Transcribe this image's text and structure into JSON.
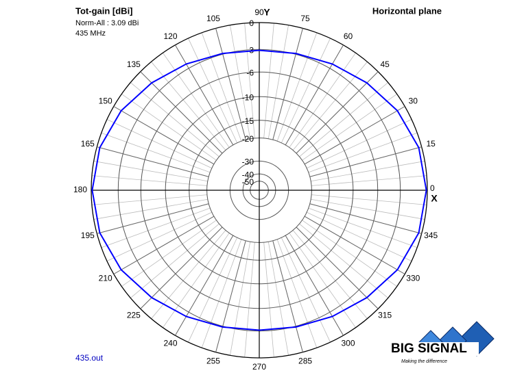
{
  "chart_data": {
    "type": "polar",
    "title": "Tot-gain [dBi]",
    "annotations": [
      "Norm-All : 3.09 dBi",
      "435 MHz"
    ],
    "plane": "Horizontal plane",
    "file": "435.out",
    "x_axis_label": "X",
    "y_axis_label": "Y",
    "radial_scale": "arrl",
    "rlim": [
      -50,
      0
    ],
    "rticks": [
      0,
      -3,
      -6,
      -10,
      -15,
      -20,
      -30,
      -40,
      -50
    ],
    "xticks": [
      0,
      15,
      30,
      45,
      60,
      75,
      90,
      105,
      120,
      135,
      150,
      165,
      180,
      195,
      210,
      225,
      240,
      255,
      270,
      285,
      300,
      315,
      330,
      345
    ],
    "x": [
      0,
      15,
      30,
      45,
      60,
      75,
      90,
      105,
      120,
      135,
      150,
      165,
      180,
      195,
      210,
      225,
      240,
      255,
      270,
      285,
      300,
      315,
      330,
      345
    ],
    "values": [
      -0.1,
      -0.3,
      -0.9,
      -1.7,
      -2.4,
      -2.9,
      -3.1,
      -2.9,
      -2.4,
      -1.7,
      -0.9,
      -0.3,
      -0.1,
      -0.3,
      -0.9,
      -1.7,
      -2.4,
      -2.9,
      -3.1,
      -2.9,
      -2.4,
      -1.7,
      -0.9,
      -0.3
    ],
    "color": "#0000ff",
    "grid": true
  },
  "logo": {
    "name": "BIG SIGNAL",
    "tagline": "Making the difference"
  }
}
